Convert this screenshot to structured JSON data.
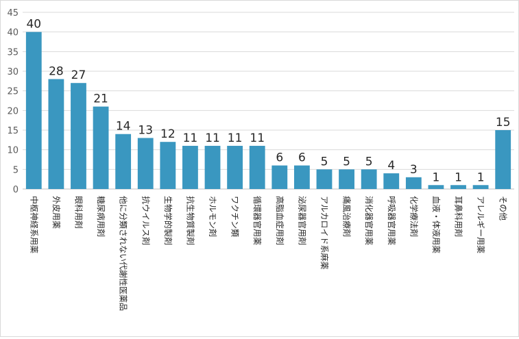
{
  "chart_data": {
    "type": "bar",
    "categories": [
      "中枢神経系用薬",
      "外皮用薬",
      "眼科用剤",
      "糖尿病用剤",
      "他に分類されない代謝性医薬品",
      "抗ウイルス剤",
      "生物学的製剤",
      "抗生物質製剤",
      "ホルモン剤",
      "ワクチン類",
      "循環器官用薬",
      "高脂血症用剤",
      "泌尿器官用剤",
      "アルカロイド系麻薬",
      "痛風治療剤",
      "消化器官用薬",
      "呼吸器官用薬",
      "化学療法剤",
      "血液・体液用薬",
      "耳鼻科用剤",
      "アレルギー用薬",
      "その他"
    ],
    "values": [
      40,
      28,
      27,
      21,
      14,
      13,
      12,
      11,
      11,
      11,
      11,
      6,
      6,
      5,
      5,
      5,
      4,
      3,
      1,
      1,
      1,
      15
    ],
    "data_labels": [
      "40",
      "28",
      "27",
      "21",
      "14",
      "13",
      "12",
      "11",
      "11",
      "11",
      "11",
      "6",
      "6",
      "5",
      "5",
      "5",
      "4",
      "3",
      "1",
      "1",
      "1",
      "15"
    ],
    "y_ticks": [
      "0",
      "5",
      "10",
      "15",
      "20",
      "25",
      "30",
      "35",
      "40",
      "45"
    ],
    "ylim": [
      0,
      45
    ],
    "grid": true,
    "legend": "none",
    "bar_color": "#3a97c0",
    "grid_color": "#d9d9d9"
  }
}
